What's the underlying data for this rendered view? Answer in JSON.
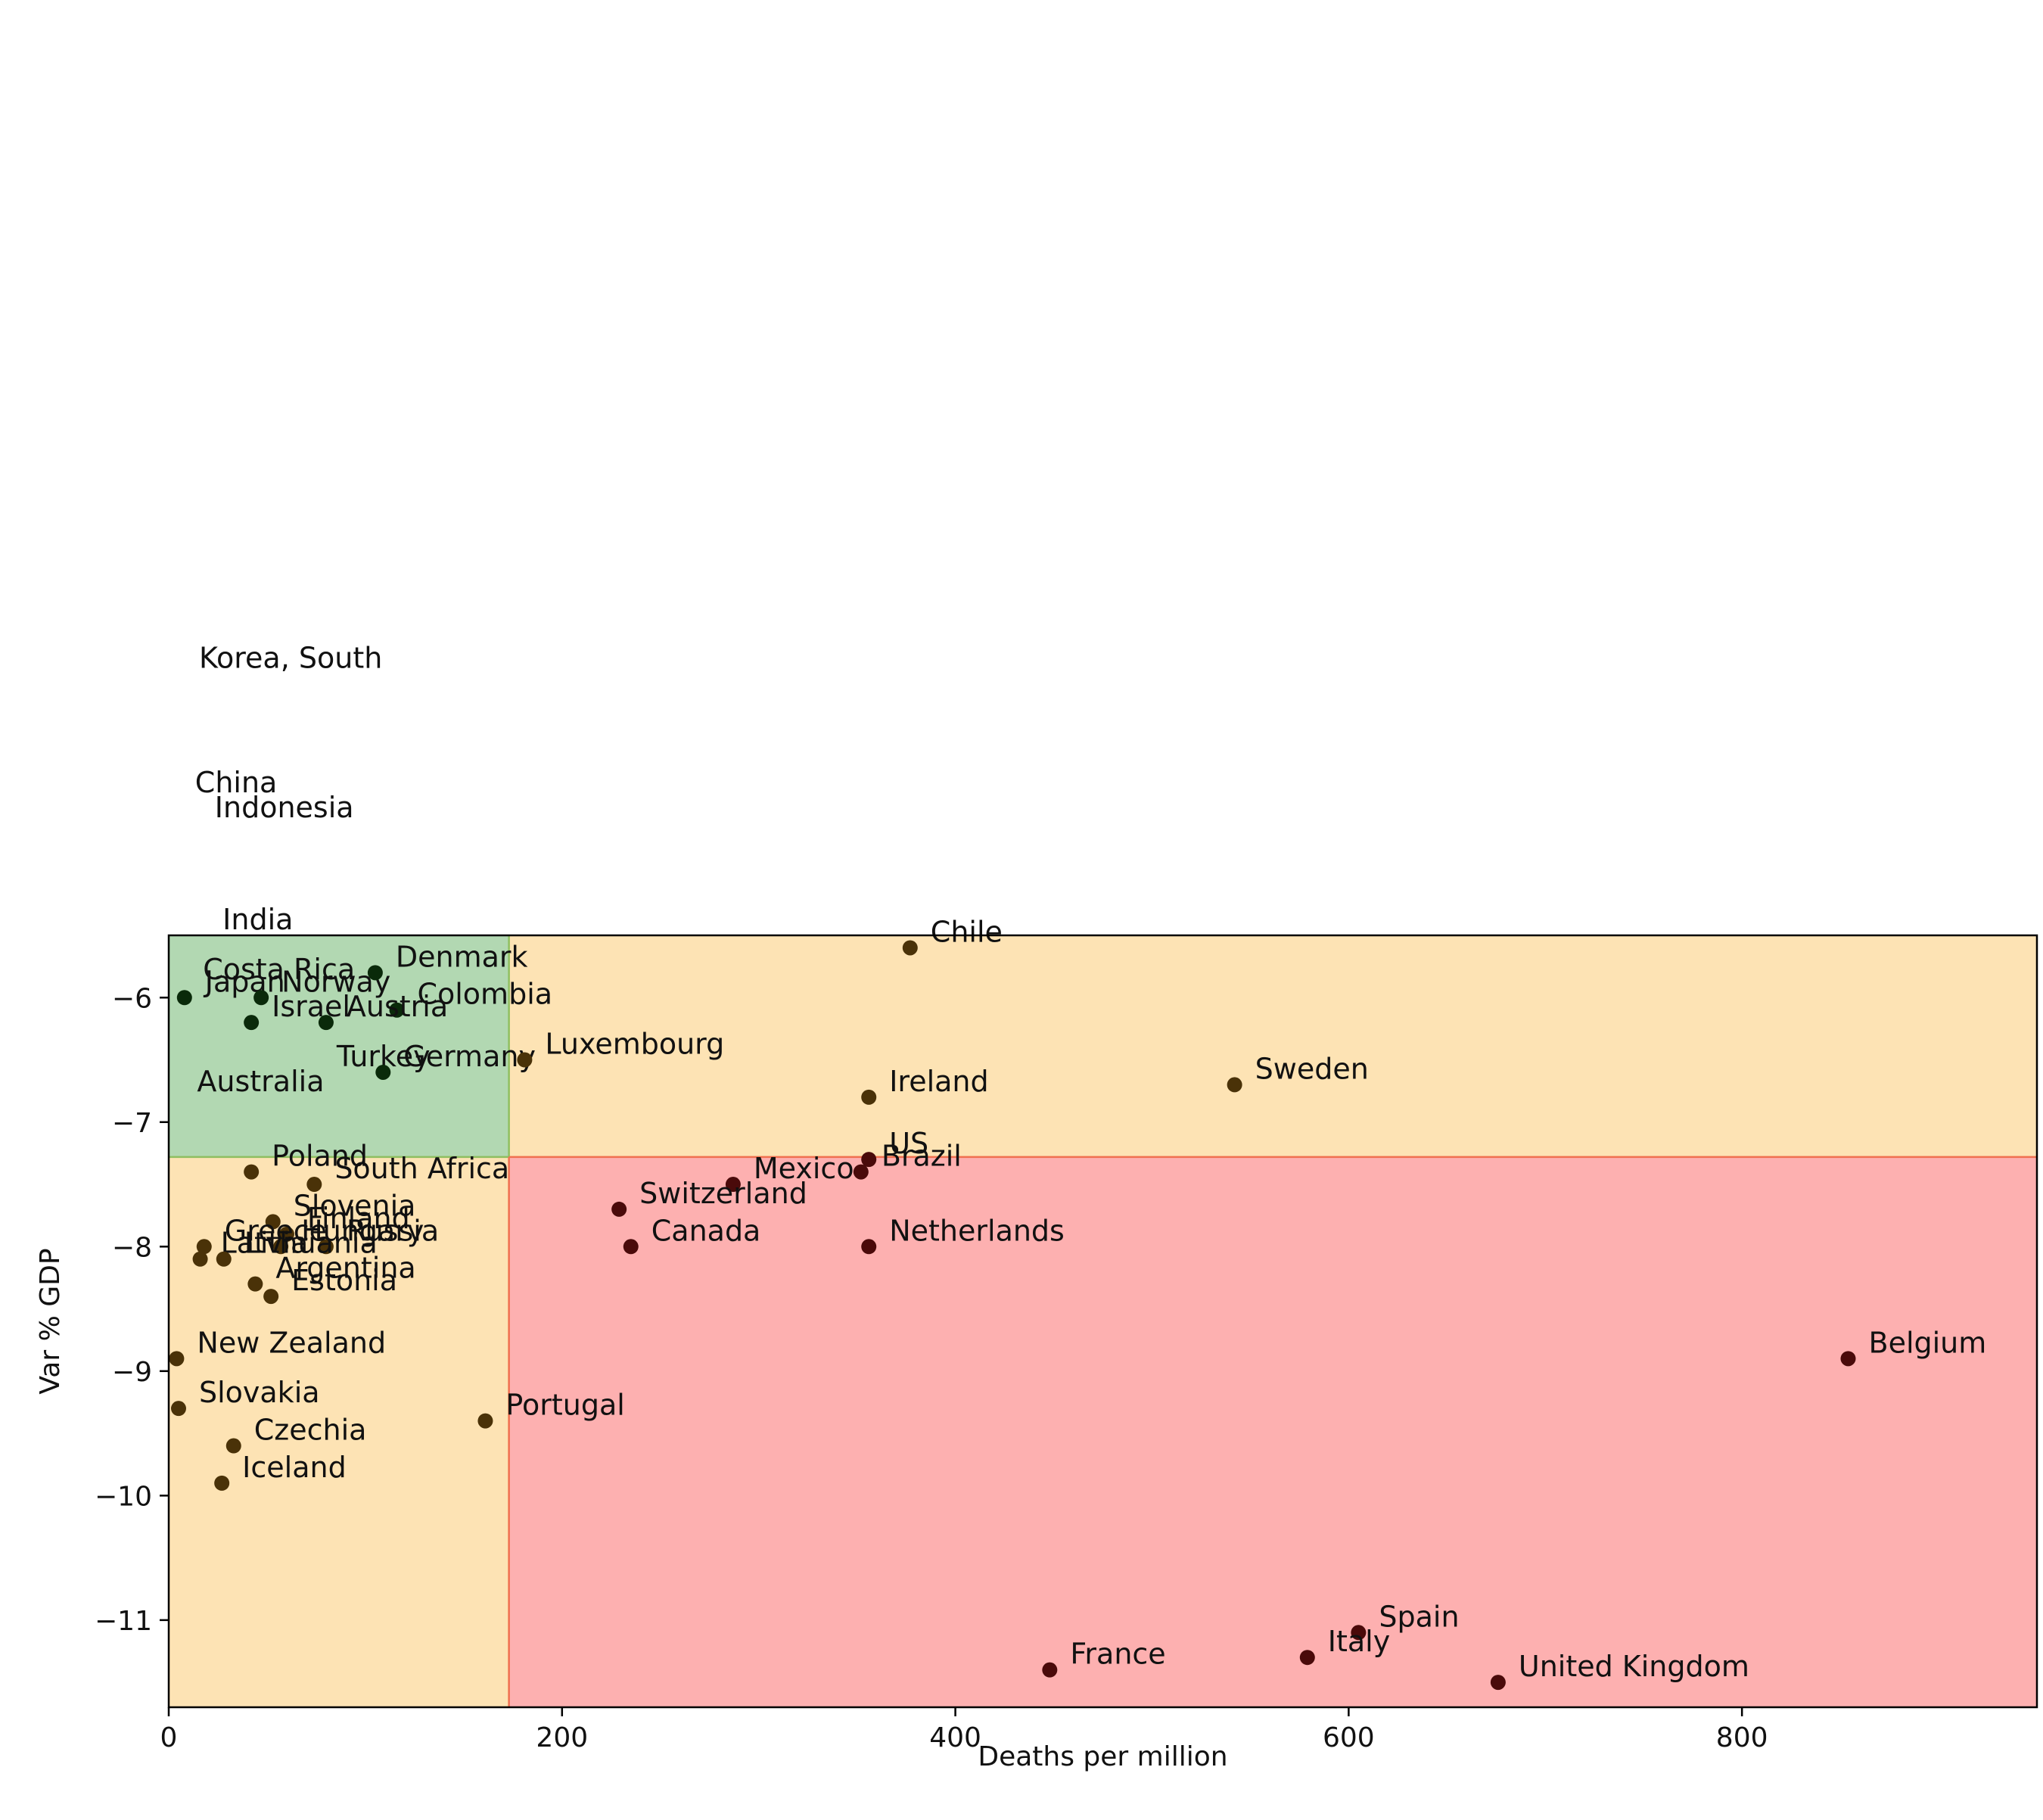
{
  "chart_data": {
    "type": "scatter",
    "title": "",
    "xlabel": "Deaths per million",
    "ylabel": "Var % GDP",
    "xlim": [
      0,
      950
    ],
    "ylim": [
      -11.7,
      -5.5
    ],
    "xticks": [
      0,
      200,
      400,
      600,
      800
    ],
    "yticks": [
      -6,
      -7,
      -8,
      -9,
      -10,
      -11
    ],
    "xtick_labels": [
      "0",
      "200",
      "400",
      "600",
      "800"
    ],
    "ytick_labels": [
      "−6",
      "−7",
      "−8",
      "−9",
      "−10",
      "−11"
    ],
    "grid": false,
    "threshold_x": 173,
    "threshold_y": -7.28,
    "colors": {
      "good_region": "#b2d8b2",
      "mixed_region": "#fde3b4",
      "bad_region": "#fdb0b0",
      "good_point": "#0a2a0a",
      "mixed_point": "#4a3208",
      "bad_point": "#4a0a0a"
    },
    "points": [
      {
        "label": "Japan",
        "x": 8,
        "y": -6.0
      },
      {
        "label": "Norway",
        "x": 47,
        "y": -6.0
      },
      {
        "label": "Denmark",
        "x": 105,
        "y": -5.8
      },
      {
        "label": "Colombia",
        "x": 116,
        "y": -6.1
      },
      {
        "label": "Israel",
        "x": 42,
        "y": -6.2
      },
      {
        "label": "Austria",
        "x": 80,
        "y": -6.2
      },
      {
        "label": "Germany",
        "x": 109,
        "y": -6.6
      },
      {
        "label": "Chile",
        "x": 377,
        "y": -5.6
      },
      {
        "label": "Luxembourg",
        "x": 181,
        "y": -6.5
      },
      {
        "label": "Ireland",
        "x": 356,
        "y": -6.8
      },
      {
        "label": "Sweden",
        "x": 542,
        "y": -6.7
      },
      {
        "label": "US",
        "x": 356,
        "y": -7.3
      },
      {
        "label": "Brazil",
        "x": 352,
        "y": -7.4
      },
      {
        "label": "Mexico",
        "x": 287,
        "y": -7.5
      },
      {
        "label": "Switzerland",
        "x": 229,
        "y": -7.7
      },
      {
        "label": "Canada",
        "x": 235,
        "y": -8.0
      },
      {
        "label": "Netherlands",
        "x": 356,
        "y": -8.0
      },
      {
        "label": "Poland",
        "x": 42,
        "y": -7.4
      },
      {
        "label": "South Africa",
        "x": 74,
        "y": -7.5
      },
      {
        "label": "Slovenia",
        "x": 53,
        "y": -7.8
      },
      {
        "label": "Finland",
        "x": 60,
        "y": -7.9
      },
      {
        "label": "Russia",
        "x": 80,
        "y": -8.0
      },
      {
        "label": "Greece",
        "x": 18,
        "y": -8.0
      },
      {
        "label": "Hungary",
        "x": 57,
        "y": -8.0
      },
      {
        "label": "Latvia",
        "x": 16,
        "y": -8.1
      },
      {
        "label": "Lithuania",
        "x": 28,
        "y": -8.1
      },
      {
        "label": "Argentina",
        "x": 44,
        "y": -8.3
      },
      {
        "label": "Estonia",
        "x": 52,
        "y": -8.4
      },
      {
        "label": "New Zealand",
        "x": 4,
        "y": -8.9
      },
      {
        "label": "Slovakia",
        "x": 5,
        "y": -9.3
      },
      {
        "label": "Portugal",
        "x": 161,
        "y": -9.4
      },
      {
        "label": "Czechia",
        "x": 33,
        "y": -9.6
      },
      {
        "label": "Iceland",
        "x": 27,
        "y": -9.9
      },
      {
        "label": "Belgium",
        "x": 854,
        "y": -8.9
      },
      {
        "label": "Spain",
        "x": 605,
        "y": -11.1
      },
      {
        "label": "Italy",
        "x": 579,
        "y": -11.3
      },
      {
        "label": "France",
        "x": 448,
        "y": -11.4
      },
      {
        "label": "United Kingdom",
        "x": 676,
        "y": -11.5
      }
    ],
    "offscale_labels": [
      {
        "label": "Korea, South",
        "x": 5,
        "y": -3.4
      },
      {
        "label": "China",
        "x": 3,
        "y": -4.4
      },
      {
        "label": "Indonesia",
        "x": 13,
        "y": -4.6
      },
      {
        "label": "India",
        "x": 17,
        "y": -5.5
      },
      {
        "label": "Costa Rica",
        "x": 7,
        "y": -5.9
      },
      {
        "label": "Turkey",
        "x": 75,
        "y": -6.6
      },
      {
        "label": "Australia",
        "x": 4,
        "y": -6.8
      }
    ]
  }
}
